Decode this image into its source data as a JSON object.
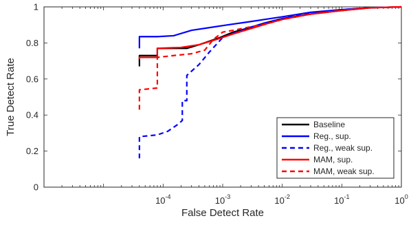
{
  "chart_data": {
    "type": "line",
    "title": "",
    "xlabel": "False Detect Rate",
    "ylabel": "True Detect Rate",
    "xscale": "log",
    "xlim": [
      1e-06,
      1
    ],
    "ylim": [
      0,
      1
    ],
    "grid": false,
    "legend_position": "bottom-right",
    "x_ticks": [
      {
        "value": 0.0001,
        "base": "10",
        "exp": "-4"
      },
      {
        "value": 0.001,
        "base": "10",
        "exp": "-3"
      },
      {
        "value": 0.01,
        "base": "10",
        "exp": "-2"
      },
      {
        "value": 0.1,
        "base": "10",
        "exp": "-1"
      },
      {
        "value": 1,
        "base": "10",
        "exp": "0"
      }
    ],
    "y_ticks": [
      {
        "value": 0,
        "label": "0"
      },
      {
        "value": 0.2,
        "label": "0.2"
      },
      {
        "value": 0.4,
        "label": "0.4"
      },
      {
        "value": 0.6,
        "label": "0.6"
      },
      {
        "value": 0.8,
        "label": "0.8"
      },
      {
        "value": 1,
        "label": "1"
      }
    ],
    "series": [
      {
        "name": "Baseline",
        "color": "#000000",
        "dash": "solid",
        "points": [
          [
            4e-05,
            0.67
          ],
          [
            4e-05,
            0.73
          ],
          [
            8e-05,
            0.73
          ],
          [
            8e-05,
            0.77
          ],
          [
            0.00025,
            0.77
          ],
          [
            0.0004,
            0.79
          ],
          [
            0.0006,
            0.81
          ],
          [
            0.0009,
            0.83
          ],
          [
            0.0015,
            0.86
          ],
          [
            0.0025,
            0.88
          ],
          [
            0.005,
            0.91
          ],
          [
            0.01,
            0.935
          ],
          [
            0.03,
            0.96
          ],
          [
            0.1,
            0.98
          ],
          [
            0.3,
            0.995
          ],
          [
            1,
            1
          ]
        ]
      },
      {
        "name": "Reg., sup.",
        "color": "#0000ff",
        "dash": "solid",
        "points": [
          [
            4e-05,
            0.77
          ],
          [
            4e-05,
            0.835
          ],
          [
            8e-05,
            0.835
          ],
          [
            0.00015,
            0.84
          ],
          [
            0.0003,
            0.87
          ],
          [
            0.0006,
            0.885
          ],
          [
            0.0012,
            0.9
          ],
          [
            0.0025,
            0.915
          ],
          [
            0.005,
            0.93
          ],
          [
            0.01,
            0.945
          ],
          [
            0.03,
            0.97
          ],
          [
            0.1,
            0.985
          ],
          [
            0.3,
            0.995
          ],
          [
            1,
            1
          ]
        ]
      },
      {
        "name": "Reg., weak sup.",
        "color": "#0000ff",
        "dash": "dashed",
        "points": [
          [
            4e-05,
            0.16
          ],
          [
            4e-05,
            0.28
          ],
          [
            8e-05,
            0.29
          ],
          [
            0.00012,
            0.31
          ],
          [
            0.00018,
            0.35
          ],
          [
            0.00021,
            0.37
          ],
          [
            0.00021,
            0.48
          ],
          [
            0.00025,
            0.48
          ],
          [
            0.00025,
            0.62
          ],
          [
            0.0004,
            0.68
          ],
          [
            0.0006,
            0.75
          ],
          [
            0.001,
            0.83
          ],
          [
            0.002,
            0.87
          ],
          [
            0.005,
            0.91
          ],
          [
            0.01,
            0.935
          ],
          [
            0.03,
            0.965
          ],
          [
            0.1,
            0.985
          ],
          [
            0.3,
            0.995
          ],
          [
            1,
            1
          ]
        ]
      },
      {
        "name": "MAM, sup.",
        "color": "#ff0000",
        "dash": "solid",
        "points": [
          [
            4e-05,
            0.71
          ],
          [
            4e-05,
            0.72
          ],
          [
            8e-05,
            0.72
          ],
          [
            8e-05,
            0.77
          ],
          [
            0.0002,
            0.775
          ],
          [
            0.0004,
            0.79
          ],
          [
            0.0008,
            0.82
          ],
          [
            0.0015,
            0.85
          ],
          [
            0.003,
            0.88
          ],
          [
            0.006,
            0.91
          ],
          [
            0.01,
            0.93
          ],
          [
            0.03,
            0.96
          ],
          [
            0.1,
            0.98
          ],
          [
            0.3,
            0.995
          ],
          [
            1,
            1
          ]
        ]
      },
      {
        "name": "MAM, weak sup.",
        "color": "#ff0000",
        "dash": "dashed",
        "points": [
          [
            4e-05,
            0.43
          ],
          [
            4e-05,
            0.54
          ],
          [
            8e-05,
            0.55
          ],
          [
            8e-05,
            0.72
          ],
          [
            0.00015,
            0.73
          ],
          [
            0.0003,
            0.74
          ],
          [
            0.0005,
            0.76
          ],
          [
            0.0007,
            0.82
          ],
          [
            0.001,
            0.86
          ],
          [
            0.0015,
            0.87
          ],
          [
            0.003,
            0.89
          ],
          [
            0.006,
            0.91
          ],
          [
            0.01,
            0.93
          ],
          [
            0.03,
            0.96
          ],
          [
            0.1,
            0.98
          ],
          [
            0.3,
            0.995
          ],
          [
            1,
            1
          ]
        ]
      }
    ]
  }
}
